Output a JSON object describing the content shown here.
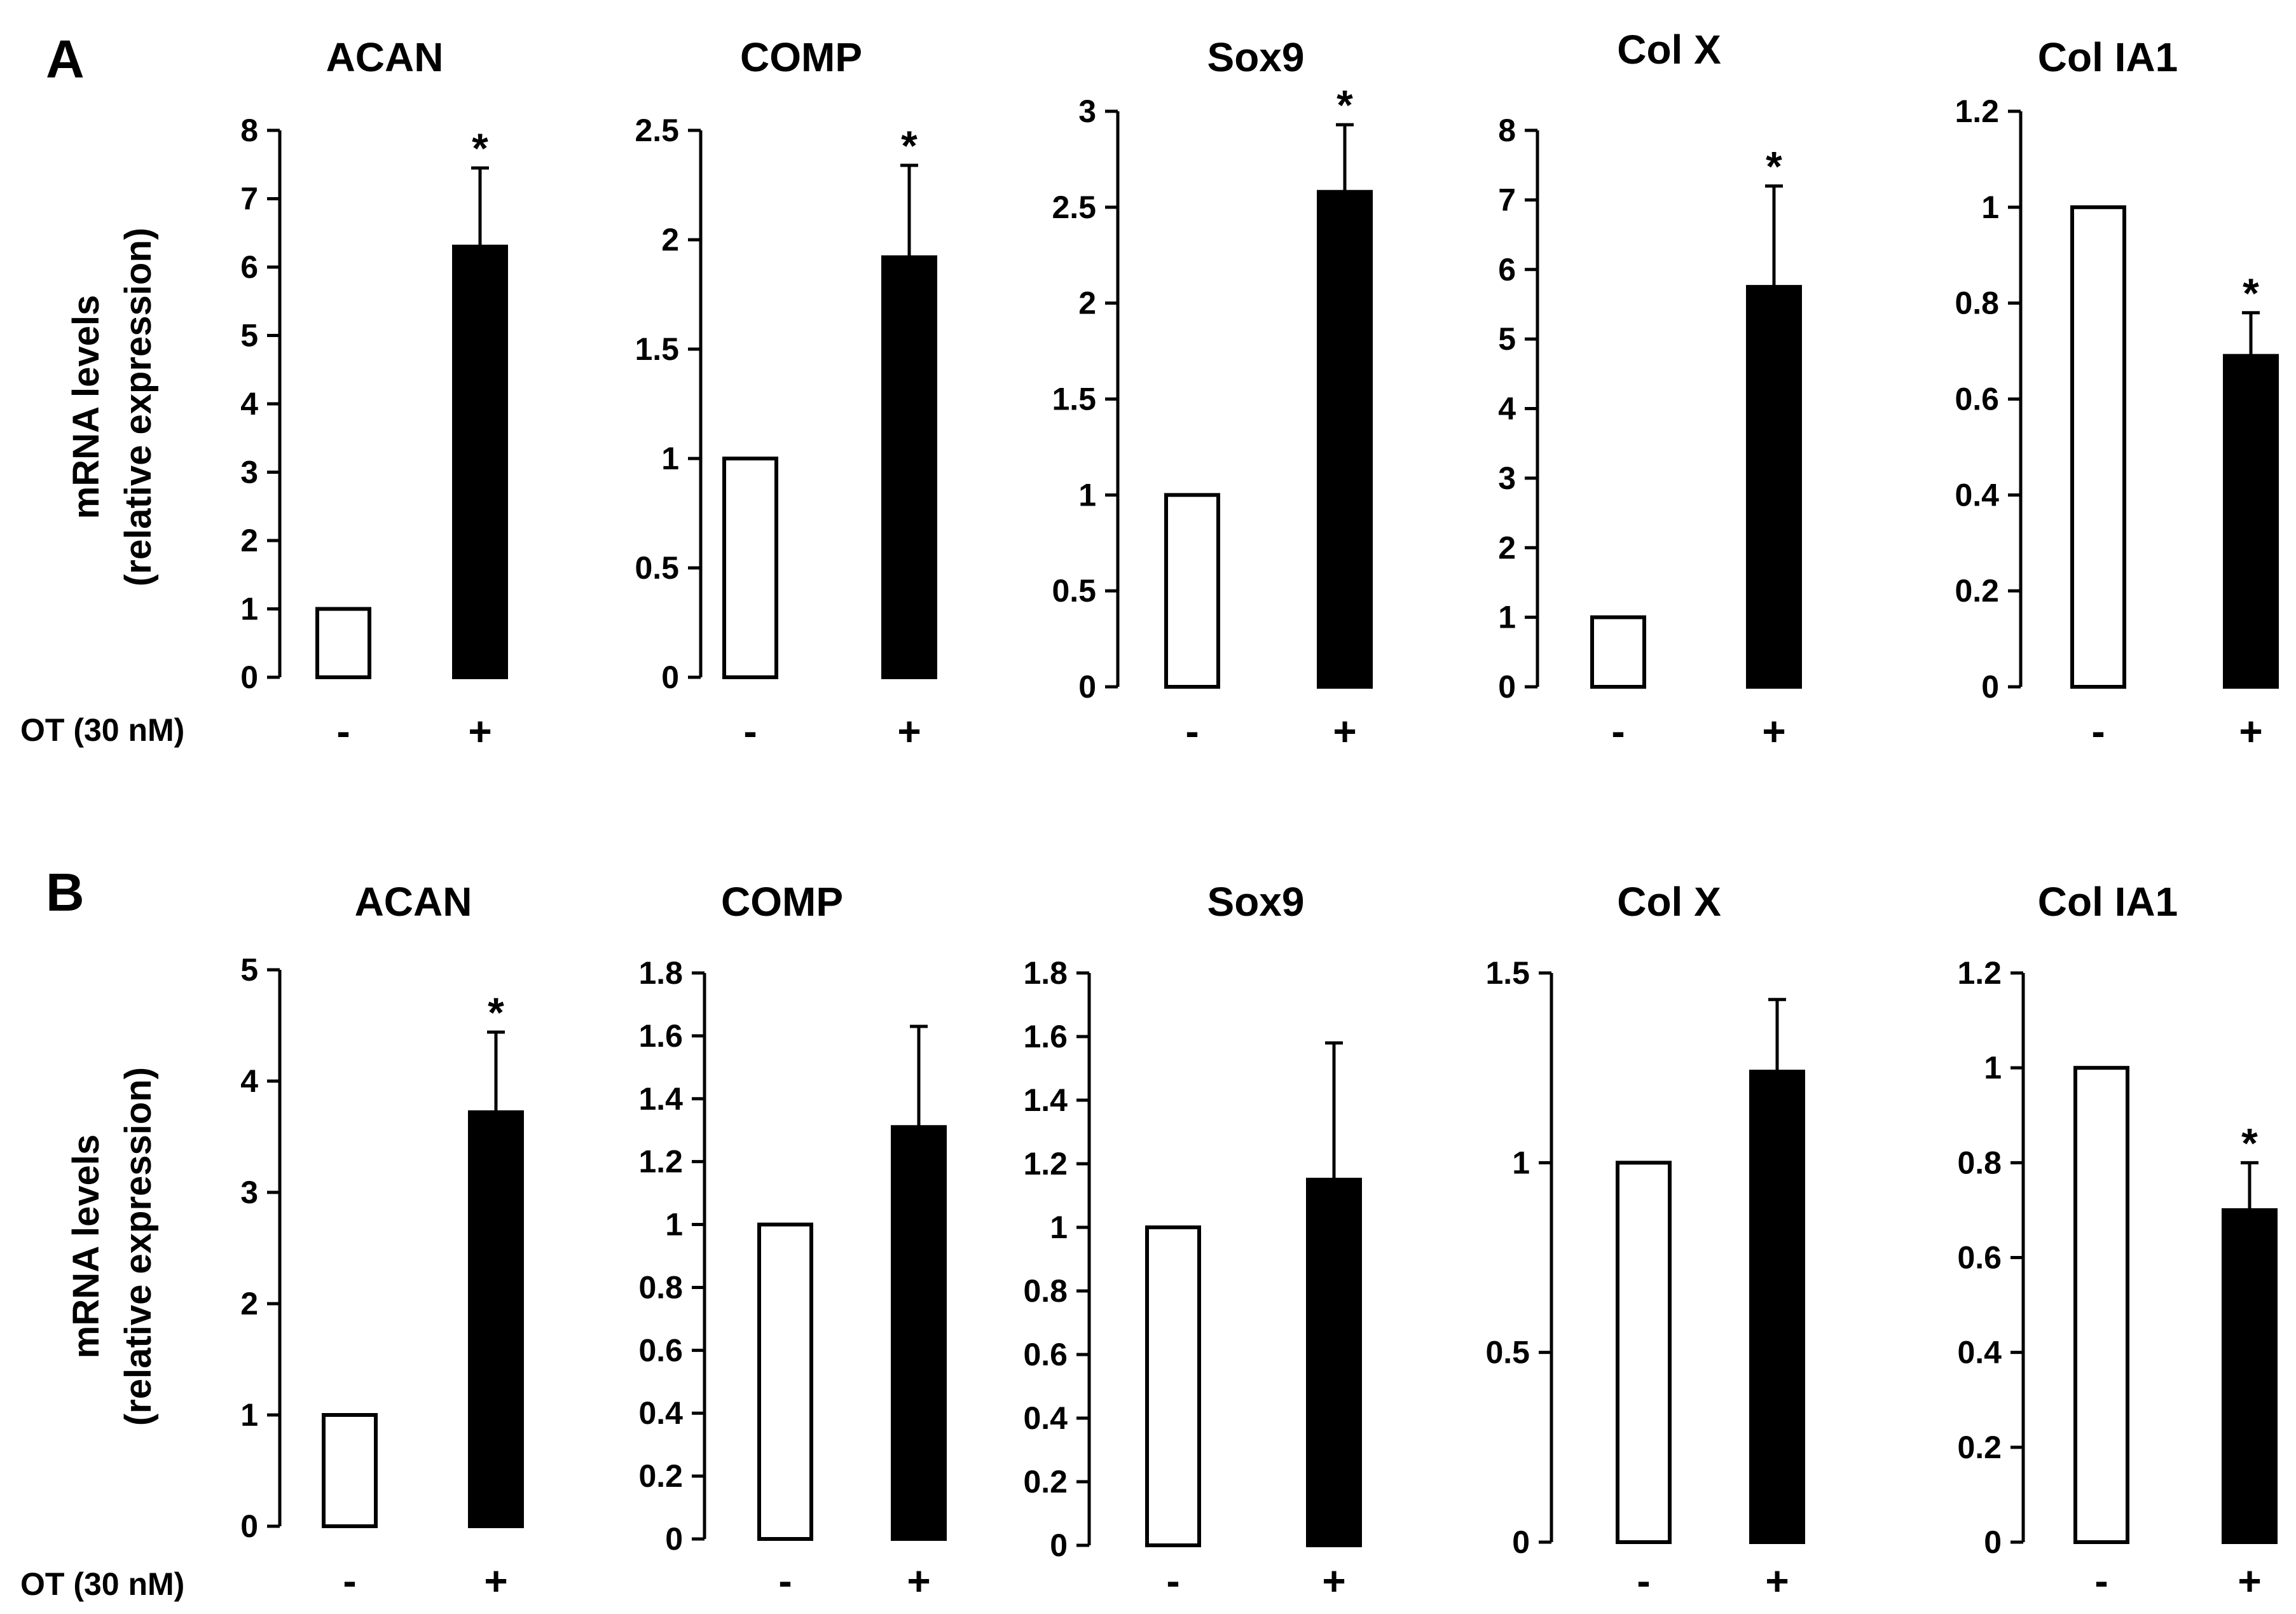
{
  "panels": [
    "A",
    "B"
  ],
  "treatment_label": "OT (30 nM)",
  "group_labels": [
    "-",
    "+"
  ],
  "ylabel_line1": "mRNA levels",
  "ylabel_line2": "(relative expression)",
  "colors": {
    "control_fill": "#ffffff",
    "treated_fill": "#000000",
    "axis": "#000000"
  },
  "chart_data": [
    {
      "panel": "A",
      "type": "bar",
      "title": "ACAN",
      "categories": [
        "-",
        "+"
      ],
      "values": [
        1,
        6.3
      ],
      "errors": [
        0,
        1.15
      ],
      "significant": [
        false,
        true
      ],
      "ylim": [
        0,
        8
      ],
      "yticks": [
        "0",
        "1",
        "2",
        "3",
        "4",
        "5",
        "6",
        "7",
        "8"
      ]
    },
    {
      "panel": "A",
      "type": "bar",
      "title": "COMP",
      "categories": [
        "-",
        "+"
      ],
      "values": [
        1,
        1.92
      ],
      "errors": [
        0,
        0.42
      ],
      "significant": [
        false,
        true
      ],
      "ylim": [
        0,
        2.5
      ],
      "yticks": [
        "0",
        "0.5",
        "1",
        "1.5",
        "2",
        "2.5"
      ]
    },
    {
      "panel": "A",
      "type": "bar",
      "title": "Sox9",
      "categories": [
        "-",
        "+"
      ],
      "values": [
        1,
        2.58
      ],
      "errors": [
        0,
        0.35
      ],
      "significant": [
        false,
        true
      ],
      "ylim": [
        0,
        3
      ],
      "yticks": [
        "0",
        "0.5",
        "1",
        "1.5",
        "2",
        "2.5",
        "3"
      ]
    },
    {
      "panel": "A",
      "type": "bar",
      "title": "Col X",
      "categories": [
        "-",
        "+"
      ],
      "values": [
        1,
        5.75
      ],
      "errors": [
        0,
        1.45
      ],
      "significant": [
        false,
        true
      ],
      "ylim": [
        0,
        8
      ],
      "yticks": [
        "0",
        "1",
        "2",
        "3",
        "4",
        "5",
        "6",
        "7",
        "8"
      ]
    },
    {
      "panel": "A",
      "type": "bar",
      "title": "Col IA1",
      "categories": [
        "-",
        "+"
      ],
      "values": [
        1,
        0.69
      ],
      "errors": [
        0,
        0.09
      ],
      "significant": [
        false,
        true
      ],
      "ylim": [
        0,
        1.2
      ],
      "yticks": [
        "0",
        "0.2",
        "0.4",
        "0.6",
        "0.8",
        "1",
        "1.2"
      ]
    },
    {
      "panel": "B",
      "type": "bar",
      "title": "ACAN",
      "categories": [
        "-",
        "+"
      ],
      "values": [
        1,
        3.72
      ],
      "errors": [
        0,
        0.72
      ],
      "significant": [
        false,
        true
      ],
      "ylim": [
        0,
        5
      ],
      "yticks": [
        "0",
        "1",
        "2",
        "3",
        "4",
        "5"
      ]
    },
    {
      "panel": "B",
      "type": "bar",
      "title": "COMP",
      "categories": [
        "-",
        "+"
      ],
      "values": [
        1,
        1.31
      ],
      "errors": [
        0,
        0.32
      ],
      "significant": [
        false,
        false
      ],
      "ylim": [
        0,
        1.8
      ],
      "yticks": [
        "0",
        "0.2",
        "0.4",
        "0.6",
        "0.8",
        "1",
        "1.2",
        "1.4",
        "1.6",
        "1.8"
      ]
    },
    {
      "panel": "B",
      "type": "bar",
      "title": "Sox9",
      "categories": [
        "-",
        "+"
      ],
      "values": [
        1,
        1.15
      ],
      "errors": [
        0,
        0.43
      ],
      "significant": [
        false,
        false
      ],
      "ylim": [
        0,
        1.8
      ],
      "yticks": [
        "0",
        "0.2",
        "0.4",
        "0.6",
        "0.8",
        "1",
        "1.2",
        "1.4",
        "1.6",
        "1.8"
      ]
    },
    {
      "panel": "B",
      "type": "bar",
      "title": "Col X",
      "categories": [
        "-",
        "+"
      ],
      "values": [
        1,
        1.24
      ],
      "errors": [
        0,
        0.19
      ],
      "significant": [
        false,
        false
      ],
      "ylim": [
        0,
        1.5
      ],
      "yticks": [
        "0",
        "0.5",
        "1",
        "1.5"
      ]
    },
    {
      "panel": "B",
      "type": "bar",
      "title": "Col IA1",
      "categories": [
        "-",
        "+"
      ],
      "values": [
        1,
        0.7
      ],
      "errors": [
        0,
        0.1
      ],
      "significant": [
        false,
        true
      ],
      "ylim": [
        0,
        1.2
      ],
      "yticks": [
        "0",
        "0.2",
        "0.4",
        "0.6",
        "0.8",
        "1",
        "1.2"
      ]
    }
  ]
}
